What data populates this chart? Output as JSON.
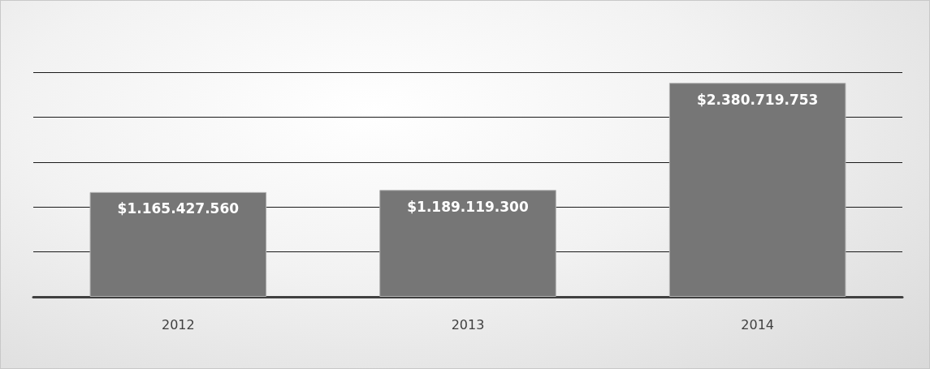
{
  "chart_data": {
    "type": "bar",
    "categories": [
      "2012",
      "2013",
      "2014"
    ],
    "values": [
      1165427560,
      1189119300,
      2380719753
    ],
    "value_labels": [
      "$1.165.427.560",
      "$1.189.119.300",
      "$2.380.719.753"
    ],
    "color": "#767676",
    "ylim": [
      0,
      2500000000
    ],
    "yticks": [
      {
        "value": 0,
        "label": null
      },
      {
        "value": 500000000,
        "label": null
      },
      {
        "value": 1000000000,
        "label": null
      },
      {
        "value": 1500000000,
        "label": null
      },
      {
        "value": 2000000000,
        "label": null
      },
      {
        "value": 2500000000,
        "label": null
      }
    ],
    "grid": "y",
    "tick_labels": "x"
  }
}
